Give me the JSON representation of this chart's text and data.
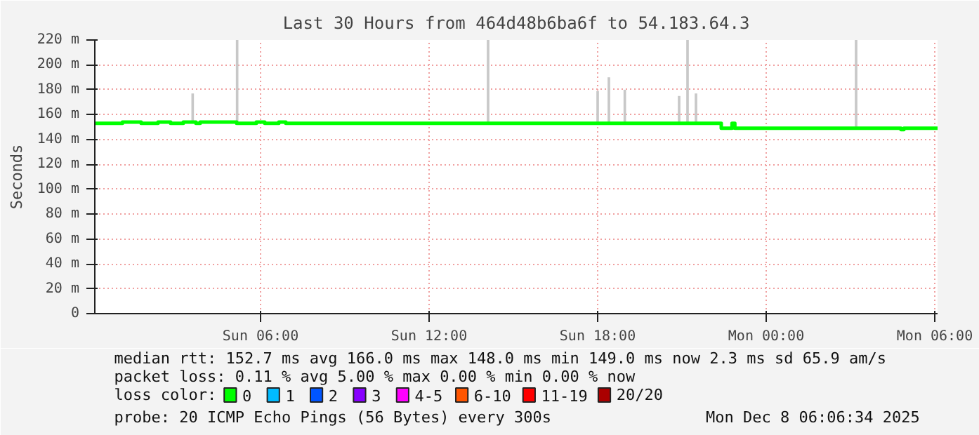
{
  "chart_data": {
    "type": "line",
    "title": "Last 30 Hours from 464d48b6ba6f to 54.183.64.3",
    "ylabel": "Seconds",
    "xlim": [
      "2025-12-07T00:06",
      "2025-12-08T06:06"
    ],
    "xticks": [
      {
        "value": "2025-12-07T06:00",
        "label": "Sun 06:00"
      },
      {
        "value": "2025-12-07T12:00",
        "label": "Sun 12:00"
      },
      {
        "value": "2025-12-07T18:00",
        "label": "Sun 18:00"
      },
      {
        "value": "2025-12-08T00:00",
        "label": "Mon 00:00"
      },
      {
        "value": "2025-12-08T06:00",
        "label": "Mon 06:00"
      }
    ],
    "ylim": [
      0,
      220
    ],
    "yticks": [
      0,
      {
        "value": 20,
        "label": "20 m"
      },
      {
        "value": 40,
        "label": "40 m"
      },
      {
        "value": 60,
        "label": "60 m"
      },
      {
        "value": 80,
        "label": "80 m"
      },
      {
        "value": 100,
        "label": "100 m"
      },
      {
        "value": 120,
        "label": "120 m"
      },
      {
        "value": 140,
        "label": "140 m"
      },
      {
        "value": 160,
        "label": "160 m"
      },
      {
        "value": 180,
        "label": "180 m"
      },
      {
        "value": 200,
        "label": "200 m"
      },
      {
        "value": 220,
        "label": "220 m"
      }
    ],
    "grid": true,
    "legend": "bottom",
    "legend_title": "loss color:",
    "line_style": "solid",
    "marker": "none",
    "series": [
      {
        "type": "bar",
        "color": "#c8c8c8",
        "x": [
          "2025-12-07T03:35",
          "2025-12-07T05:10",
          "2025-12-07T14:06",
          "2025-12-07T18:00",
          "2025-12-07T18:24",
          "2025-12-07T18:58",
          "2025-12-07T20:54",
          "2025-12-07T21:12",
          "2025-12-07T21:30",
          "2025-12-08T03:12"
        ],
        "base": [
          153,
          153,
          153,
          153,
          153,
          153,
          153,
          153,
          153,
          149
        ],
        "values": [
          24,
          67,
          67,
          26,
          37,
          27,
          22,
          67,
          24,
          71
        ]
      },
      {
        "name": "0",
        "color": "#00ff00",
        "x": [
          "2025-12-07T00:06",
          "2025-12-07T01:05",
          "2025-12-07T01:45",
          "2025-12-07T02:21",
          "2025-12-07T02:48",
          "2025-12-07T03:15",
          "2025-12-07T03:42",
          "2025-12-07T03:51",
          "2025-12-07T05:09",
          "2025-12-07T05:51",
          "2025-12-07T06:09",
          "2025-12-07T06:39",
          "2025-12-07T06:54",
          "2025-12-07T22:24",
          "2025-12-07T22:47",
          "2025-12-07T22:53",
          "2025-12-08T04:48",
          "2025-12-08T04:54",
          "2025-12-08T06:06"
        ],
        "values": [
          153,
          154,
          153,
          154,
          153,
          154,
          153,
          154,
          153,
          154,
          153,
          154,
          153,
          149,
          153,
          149,
          148,
          149,
          149
        ]
      },
      {
        "name": "1",
        "color": "#00bbff"
      },
      {
        "name": "2",
        "color": "#0055ff"
      },
      {
        "name": "3",
        "color": "#8800ff"
      },
      {
        "name": "4-5",
        "color": "#ff00ff"
      },
      {
        "name": "6-10",
        "color": "#ff5500"
      },
      {
        "name": "11-19",
        "color": "#ff0000"
      },
      {
        "name": "20/20",
        "color": "#aa0000"
      }
    ],
    "annotations": [
      "median rtt:  152.7 ms avg  166.0 ms max  148.0 ms min  149.0 ms now  2.3 ms sd  65.9   am/s",
      "packet loss: 0.11 % avg  5.00 % max  0.00 % min  0.00 % now",
      "probe:       20 ICMP Echo Pings (56 Bytes) every 300s",
      "Mon Dec  8 06:06:34 2025"
    ]
  }
}
